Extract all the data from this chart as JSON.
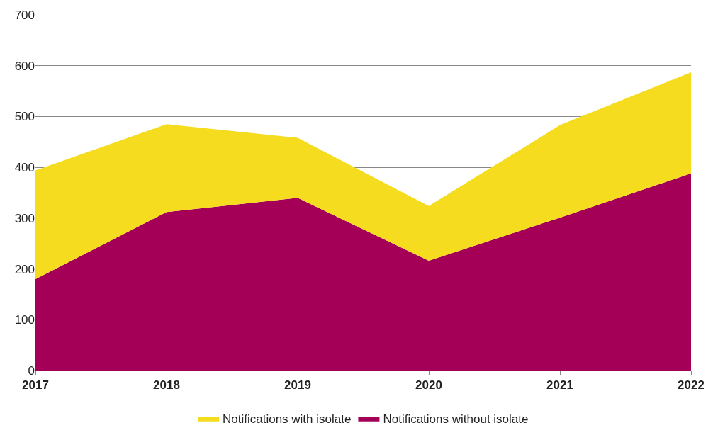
{
  "chart_data": {
    "type": "area",
    "stacked": true,
    "categories": [
      "2017",
      "2018",
      "2019",
      "2020",
      "2021",
      "2022"
    ],
    "series": [
      {
        "name": "Notifications without isolate",
        "color": "#a50058",
        "values": [
          180,
          312,
          340,
          216,
          301,
          388
        ]
      },
      {
        "name": "Notifications with isolate",
        "color": "#f6dc1e",
        "values": [
          214,
          173,
          118,
          108,
          182,
          199
        ]
      }
    ],
    "ylim": [
      0,
      700
    ],
    "yticks": [
      0,
      100,
      200,
      300,
      400,
      500,
      600,
      700
    ],
    "grid": "y",
    "legend": "bottom"
  }
}
